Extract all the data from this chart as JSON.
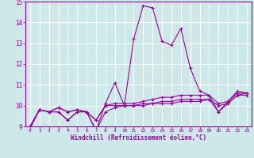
{
  "x": [
    0,
    1,
    2,
    3,
    4,
    5,
    6,
    7,
    8,
    9,
    10,
    11,
    12,
    13,
    14,
    15,
    16,
    17,
    18,
    19,
    20,
    21,
    22,
    23
  ],
  "line1": [
    8.9,
    9.8,
    9.7,
    9.7,
    9.3,
    9.7,
    9.7,
    8.8,
    10.1,
    11.1,
    10.0,
    13.2,
    14.8,
    14.7,
    13.1,
    12.9,
    13.7,
    11.8,
    10.7,
    10.5,
    9.7,
    10.2,
    10.7,
    10.6
  ],
  "line2": [
    9.0,
    9.8,
    9.7,
    9.9,
    9.7,
    9.8,
    9.7,
    9.3,
    10.0,
    10.1,
    10.1,
    10.1,
    10.2,
    10.3,
    10.4,
    10.4,
    10.5,
    10.5,
    10.5,
    10.5,
    10.1,
    10.2,
    10.6,
    10.6
  ],
  "line3": [
    9.0,
    9.8,
    9.7,
    9.9,
    9.7,
    9.8,
    9.7,
    9.3,
    10.0,
    10.0,
    10.0,
    10.0,
    10.1,
    10.1,
    10.2,
    10.2,
    10.3,
    10.3,
    10.3,
    10.3,
    10.0,
    10.1,
    10.5,
    10.6
  ],
  "line4": [
    9.0,
    9.8,
    9.7,
    9.7,
    9.3,
    9.7,
    9.7,
    8.8,
    9.7,
    9.9,
    10.0,
    10.0,
    10.0,
    10.1,
    10.1,
    10.1,
    10.2,
    10.2,
    10.2,
    10.3,
    9.7,
    10.1,
    10.5,
    10.5
  ],
  "line_color": "#990099",
  "bg_color": "#cce8e8",
  "grid_color": "#ffffff",
  "ylim": [
    9,
    15
  ],
  "yticks": [
    9,
    10,
    11,
    12,
    13,
    14,
    15
  ],
  "xlabel": "Windchill (Refroidissement éolien,°C)",
  "xtick_labels": [
    "0",
    "1",
    "2",
    "3",
    "4",
    "5",
    "6",
    "7",
    "8",
    "9",
    "10",
    "11",
    "12",
    "13",
    "14",
    "15",
    "16",
    "17",
    "18",
    "19",
    "20",
    "21",
    "22",
    "23"
  ]
}
